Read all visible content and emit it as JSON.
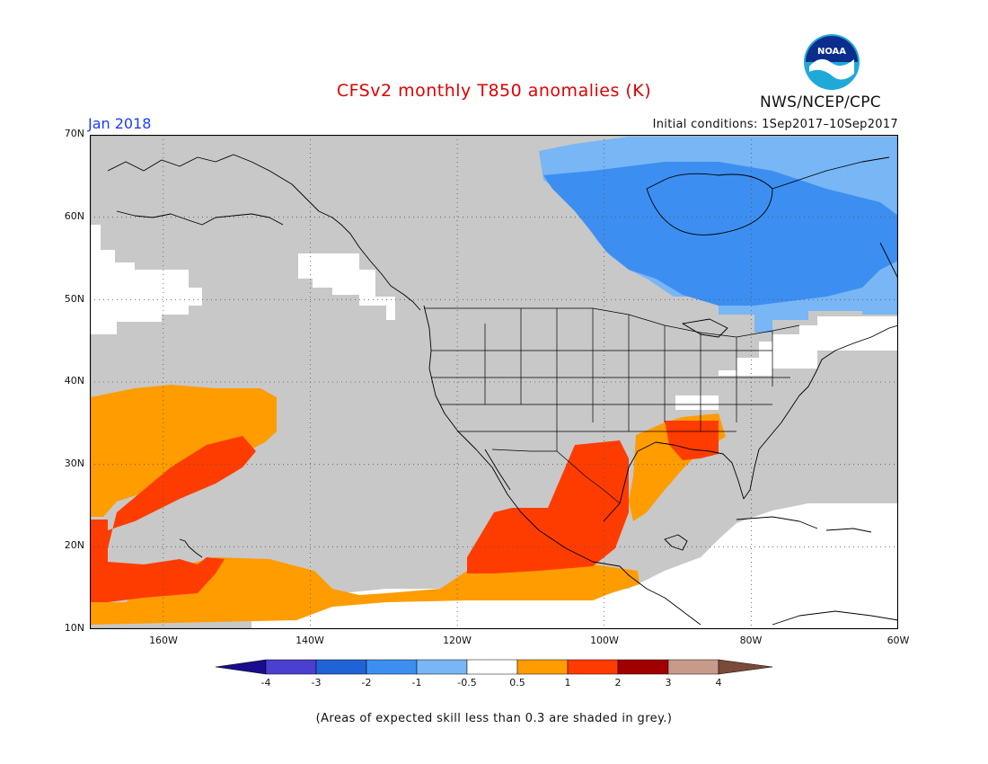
{
  "header": {
    "title": "CFSv2 monthly T850 anomalies (K)",
    "agency": "NWS/NCEP/CPC",
    "period": "Jan 2018",
    "initial_conditions": "Initial conditions: 1Sep2017–10Sep2017"
  },
  "logo": {
    "text": "NOAA",
    "colors": {
      "outer": "#1fa9d8",
      "inner": "#0b2d8c",
      "bird": "#ffffff"
    }
  },
  "map": {
    "lat_labels": [
      "70N",
      "60N",
      "50N",
      "40N",
      "30N",
      "20N",
      "10N"
    ],
    "lon_labels": [
      "160W",
      "140W",
      "120W",
      "100W",
      "80W",
      "60W"
    ],
    "extent": {
      "lon": [
        -170,
        -60
      ],
      "lat": [
        10,
        70
      ]
    },
    "grid": true,
    "colors": {
      "skill_grey": "#c8c8c8",
      "ocean_white": "#ffffff",
      "coast": "#000000"
    }
  },
  "colorbar": {
    "labels": [
      "-4",
      "-3",
      "-2",
      "-1",
      "-0.5",
      "0.5",
      "1",
      "2",
      "3",
      "4"
    ],
    "colors": [
      "#1a0c8c",
      "#4b3fd0",
      "#1f63d6",
      "#3c8ff0",
      "#78b6f5",
      "#ffffff",
      "#ff9c00",
      "#ff3c00",
      "#a00000",
      "#c79a8a",
      "#7a4a3a"
    ]
  },
  "footer": {
    "note": "(Areas of expected skill less than 0.3 are shaded in grey.)"
  }
}
